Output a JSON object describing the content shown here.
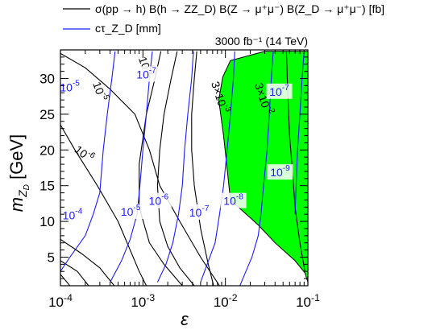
{
  "chart_data": {
    "type": "contour",
    "annotation": "3000 fb⁻¹ (14 TeV)",
    "xlabel": "ε",
    "ylabel": "m",
    "ylabel_sub": "Z",
    "ylabel_subsub": "D",
    "ylabel_unit": " [GeV]",
    "xscale": "log",
    "xlim": [
      0.0001,
      0.1
    ],
    "ylim": [
      1,
      34
    ],
    "x_ticks": [
      {
        "value": 0.0001,
        "base": "10",
        "exp": "-4"
      },
      {
        "value": 0.001,
        "base": "10",
        "exp": "-3"
      },
      {
        "value": 0.01,
        "base": "10",
        "exp": "-2"
      },
      {
        "value": 0.1,
        "base": "10",
        "exp": "-1"
      }
    ],
    "y_ticks": [
      5,
      10,
      15,
      20,
      25,
      30
    ],
    "legend": [
      {
        "text": "σ(pp → h) B(h → ZZ_D) B(Z → μ⁺μ⁻) B(Z_D → μ⁺μ⁻) [fb]",
        "color": "#000000"
      },
      {
        "text": "cτ_Z_D [mm]",
        "color": "#1a1aff"
      }
    ],
    "excluded_region_color": "#00ff00",
    "excluded_region": [
      {
        "x": 0.0083,
        "y": 27
      },
      {
        "x": 0.0093,
        "y": 30.2
      },
      {
        "x": 0.0115,
        "y": 32.5
      },
      {
        "x": 0.03,
        "y": 33.8
      },
      {
        "x": 0.088,
        "y": 33.8
      },
      {
        "x": 0.1,
        "y": 33.8
      },
      {
        "x": 0.1,
        "y": 1.5
      },
      {
        "x": 0.092,
        "y": 2.8
      },
      {
        "x": 0.07,
        "y": 4.5
      },
      {
        "x": 0.04,
        "y": 7
      },
      {
        "x": 0.025,
        "y": 9.5
      },
      {
        "x": 0.0115,
        "y": 13
      },
      {
        "x": 0.0108,
        "y": 16
      },
      {
        "x": 0.0095,
        "y": 22
      }
    ],
    "black_contours": [
      {
        "points": [
          {
            "x": 0.0001,
            "y": 33.5
          },
          {
            "x": 0.0002,
            "y": 31.5
          },
          {
            "x": 0.0004,
            "y": 28.5
          },
          {
            "x": 0.0008,
            "y": 25
          },
          {
            "x": 0.0012,
            "y": 20
          },
          {
            "x": 0.0016,
            "y": 15
          },
          {
            "x": 0.0028,
            "y": 10
          },
          {
            "x": 0.005,
            "y": 5
          },
          {
            "x": 0.0085,
            "y": 1
          }
        ]
      },
      {
        "points": [
          {
            "x": 0.00165,
            "y": 33.8
          },
          {
            "x": 0.0014,
            "y": 30
          },
          {
            "x": 0.0011,
            "y": 25
          },
          {
            "x": 0.0009,
            "y": 18
          },
          {
            "x": 0.0009,
            "y": 12
          },
          {
            "x": 0.0012,
            "y": 7
          },
          {
            "x": 0.0018,
            "y": 4
          },
          {
            "x": 0.003,
            "y": 1
          }
        ]
      },
      {
        "points": [
          {
            "x": 0.0026,
            "y": 33.8
          },
          {
            "x": 0.0022,
            "y": 30
          },
          {
            "x": 0.0018,
            "y": 25
          },
          {
            "x": 0.0016,
            "y": 20
          },
          {
            "x": 0.0015,
            "y": 15
          },
          {
            "x": 0.0016,
            "y": 10
          },
          {
            "x": 0.002,
            "y": 6.5
          },
          {
            "x": 0.0028,
            "y": 3.5
          },
          {
            "x": 0.0042,
            "y": 1
          }
        ]
      },
      {
        "points": [
          {
            "x": 0.0045,
            "y": 33.8
          },
          {
            "x": 0.0042,
            "y": 30
          },
          {
            "x": 0.0039,
            "y": 25
          },
          {
            "x": 0.0039,
            "y": 20
          },
          {
            "x": 0.0042,
            "y": 15
          },
          {
            "x": 0.005,
            "y": 9
          },
          {
            "x": 0.0062,
            "y": 4
          },
          {
            "x": 0.0072,
            "y": 1
          }
        ]
      },
      {
        "points": [
          {
            "x": 0.0001,
            "y": 23.5
          },
          {
            "x": 0.00015,
            "y": 20
          },
          {
            "x": 0.00028,
            "y": 15
          },
          {
            "x": 0.0005,
            "y": 10
          },
          {
            "x": 0.0007,
            "y": 6
          },
          {
            "x": 0.0009,
            "y": 3
          },
          {
            "x": 0.0011,
            "y": 1
          }
        ]
      },
      {
        "points": [
          {
            "x": 0.0001,
            "y": 7.5
          },
          {
            "x": 0.00018,
            "y": 5.5
          },
          {
            "x": 0.0003,
            "y": 3.5
          },
          {
            "x": 0.00045,
            "y": 1
          }
        ]
      },
      {
        "points": [
          {
            "x": 0.0001,
            "y": 4.5
          },
          {
            "x": 0.00016,
            "y": 3
          },
          {
            "x": 0.00022,
            "y": 1
          }
        ]
      },
      {
        "points": [
          {
            "x": 0.0001,
            "y": 2.6
          },
          {
            "x": 0.00013,
            "y": 1
          }
        ]
      },
      {
        "points": [
          {
            "x": 0.055,
            "y": 33.8
          },
          {
            "x": 0.057,
            "y": 28
          },
          {
            "x": 0.06,
            "y": 22
          },
          {
            "x": 0.065,
            "y": 17
          },
          {
            "x": 0.07,
            "y": 12
          },
          {
            "x": 0.08,
            "y": 7
          },
          {
            "x": 0.092,
            "y": 3
          }
        ]
      }
    ],
    "blue_contours": [
      {
        "points": [
          {
            "x": 0.00046,
            "y": 33.8
          },
          {
            "x": 0.00042,
            "y": 30
          },
          {
            "x": 0.00037,
            "y": 25
          },
          {
            "x": 0.00033,
            "y": 20
          },
          {
            "x": 0.0003,
            "y": 14
          },
          {
            "x": 0.00025,
            "y": 11
          },
          {
            "x": 0.0002,
            "y": 8
          },
          {
            "x": 0.00013,
            "y": 5
          },
          {
            "x": 0.0001,
            "y": 3
          }
        ]
      },
      {
        "points": [
          {
            "x": 0.0013,
            "y": 33.8
          },
          {
            "x": 0.0012,
            "y": 30
          },
          {
            "x": 0.0011,
            "y": 25
          },
          {
            "x": 0.001,
            "y": 20
          },
          {
            "x": 0.00092,
            "y": 15
          },
          {
            "x": 0.00085,
            "y": 11
          },
          {
            "x": 0.0007,
            "y": 7.5
          },
          {
            "x": 0.00055,
            "y": 4.5
          },
          {
            "x": 0.0004,
            "y": 1.5
          }
        ]
      },
      {
        "points": [
          {
            "x": 0.0041,
            "y": 33.8
          },
          {
            "x": 0.0039,
            "y": 30
          },
          {
            "x": 0.0035,
            "y": 25
          },
          {
            "x": 0.0032,
            "y": 20
          },
          {
            "x": 0.003,
            "y": 15
          },
          {
            "x": 0.0027,
            "y": 11
          },
          {
            "x": 0.0023,
            "y": 7
          },
          {
            "x": 0.0019,
            "y": 4
          },
          {
            "x": 0.0015,
            "y": 1.5
          }
        ]
      },
      {
        "points": [
          {
            "x": 0.013,
            "y": 33.8
          },
          {
            "x": 0.0125,
            "y": 30
          },
          {
            "x": 0.0115,
            "y": 25
          },
          {
            "x": 0.0105,
            "y": 20
          },
          {
            "x": 0.0095,
            "y": 15
          },
          {
            "x": 0.0085,
            "y": 11
          },
          {
            "x": 0.0075,
            "y": 7
          },
          {
            "x": 0.006,
            "y": 4
          },
          {
            "x": 0.005,
            "y": 1.5
          }
        ]
      },
      {
        "points": [
          {
            "x": 0.038,
            "y": 33.8
          },
          {
            "x": 0.036,
            "y": 30
          },
          {
            "x": 0.034,
            "y": 25
          },
          {
            "x": 0.032,
            "y": 20
          },
          {
            "x": 0.029,
            "y": 15
          },
          {
            "x": 0.027,
            "y": 11
          },
          {
            "x": 0.025,
            "y": 8
          },
          {
            "x": 0.021,
            "y": 5
          },
          {
            "x": 0.017,
            "y": 2.5
          },
          {
            "x": 0.015,
            "y": 1
          }
        ]
      },
      {
        "points": [
          {
            "x": 0.09,
            "y": 33.8
          },
          {
            "x": 0.085,
            "y": 30
          },
          {
            "x": 0.08,
            "y": 25
          },
          {
            "x": 0.075,
            "y": 20
          },
          {
            "x": 0.072,
            "y": 15
          },
          {
            "x": 0.07,
            "y": 11
          }
        ]
      }
    ],
    "blue_labels": [
      {
        "base": "10",
        "exp": "-4",
        "x": 0.00014,
        "y": 10.3
      },
      {
        "base": "10",
        "exp": "-5",
        "x": 0.00013,
        "y": 28.2
      },
      {
        "base": "10",
        "exp": "-5",
        "x": 0.00071,
        "y": 10.8
      },
      {
        "base": "10",
        "exp": "-6",
        "x": 0.00155,
        "y": 12.3
      },
      {
        "base": "10",
        "exp": "-7",
        "x": 0.0011,
        "y": 30.0
      },
      {
        "base": "10",
        "exp": "-7",
        "x": 0.0048,
        "y": 10.7
      },
      {
        "base": "10",
        "exp": "-8",
        "x": 0.0125,
        "y": 12.3
      },
      {
        "base": "10",
        "exp": "-7",
        "x": 0.045,
        "y": 27.6
      },
      {
        "base": "10",
        "exp": "-9",
        "x": 0.046,
        "y": 16.3
      }
    ],
    "black_labels": [
      {
        "base": "10",
        "exp": "-6",
        "x": 0.00018,
        "y": 19.0,
        "angle": 38
      },
      {
        "base": "10",
        "exp": "-5",
        "x": 0.00027,
        "y": 28.0,
        "angle": 70
      },
      {
        "base": "10",
        "exp": "-4",
        "x": 0.00097,
        "y": 31.5,
        "angle": 70
      },
      {
        "base": "3×10",
        "exp": "-3",
        "x": 0.0077,
        "y": 27.2,
        "angle": 72
      },
      {
        "base": "3×10",
        "exp": "-2",
        "x": 0.026,
        "y": 27.0,
        "angle": 72
      }
    ]
  }
}
